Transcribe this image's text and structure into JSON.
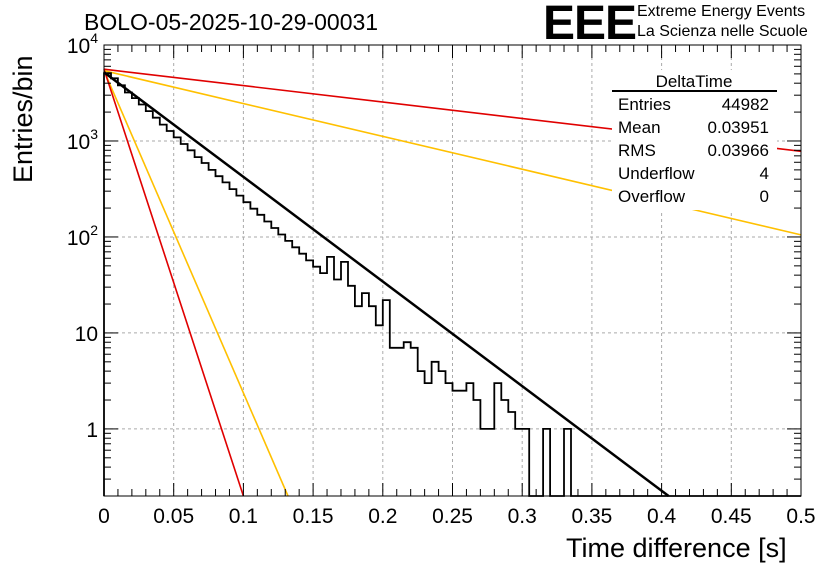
{
  "colors": {
    "histogram": "#000000",
    "fit": "#000000",
    "red_curves": "#e00000",
    "yellow_curves": "#ffc000",
    "logo": "#1a1aff",
    "grid": "#aaaaaa"
  },
  "header": {
    "run_title": "BOLO-05-2025-10-29-00031",
    "logo_text": "EEE",
    "logo_line1": "Extreme Energy Events",
    "logo_line2": "La Scienza nelle Scuole"
  },
  "stats": {
    "title": "DeltaTime",
    "rows": [
      {
        "label": "Entries",
        "value": "44982"
      },
      {
        "label": "Mean",
        "value": "0.03951"
      },
      {
        "label": "RMS",
        "value": "0.03966"
      },
      {
        "label": "Underflow",
        "value": "4"
      },
      {
        "label": "Overflow",
        "value": "0"
      }
    ]
  },
  "chart_data": {
    "type": "line",
    "title": "BOLO-05-2025-10-29-00031",
    "xlabel": "Time difference [s]",
    "ylabel": "Entries/bin",
    "xlim": [
      0,
      0.5
    ],
    "ylim": [
      0.2,
      10000
    ],
    "yscale": "log",
    "grid": true,
    "legend": "top-right",
    "x_ticks": [
      0,
      0.05,
      0.1,
      0.15,
      0.2,
      0.25,
      0.3,
      0.35,
      0.4,
      0.45,
      0.5
    ],
    "x_tick_labels": [
      "0",
      "0.05",
      "0.1",
      "0.15",
      "0.2",
      "0.25",
      "0.3",
      "0.35",
      "0.4",
      "0.45",
      "0.5"
    ],
    "y_ticks": [
      1,
      10,
      100,
      1000,
      10000
    ],
    "y_tick_labels": [
      "1",
      "10",
      "10^2",
      "10^3",
      "10^4"
    ],
    "histogram": {
      "name": "DeltaTime",
      "bin_width": 0.005,
      "values": [
        5100,
        4500,
        3800,
        3200,
        2800,
        2400,
        2050,
        1750,
        1480,
        1270,
        1090,
        930,
        800,
        680,
        590,
        500,
        430,
        370,
        315,
        270,
        230,
        197,
        170,
        145,
        124,
        106,
        91,
        78,
        67,
        57,
        49,
        42,
        62,
        36,
        55,
        31,
        19,
        26,
        19,
        12,
        22,
        7,
        7,
        8,
        7,
        4,
        3,
        5,
        4,
        3,
        2.5,
        2.5,
        3,
        2,
        1,
        1,
        3,
        2,
        1.5,
        1,
        1,
        0,
        0,
        1,
        0,
        0,
        1,
        0,
        0,
        0,
        0,
        0,
        0,
        0,
        0,
        0,
        0,
        0,
        0,
        0,
        0,
        0,
        0,
        0,
        0,
        0,
        0,
        0,
        0,
        0,
        0,
        0,
        0,
        0,
        0,
        0,
        0,
        0,
        0,
        0
      ]
    },
    "series": [
      {
        "name": "fit",
        "color": "black",
        "x": [
          0,
          0.405
        ],
        "y": [
          5200,
          0.2
        ]
      },
      {
        "name": "red upper",
        "color": "red",
        "x": [
          0,
          0.5
        ],
        "y": [
          5600,
          780
        ]
      },
      {
        "name": "yellow upper",
        "color": "yellow",
        "x": [
          0,
          0.5
        ],
        "y": [
          5400,
          105
        ]
      },
      {
        "name": "yellow steep",
        "color": "yellow",
        "x": [
          0,
          0.132
        ],
        "y": [
          5400,
          0.2
        ]
      },
      {
        "name": "red steep",
        "color": "red",
        "x": [
          0,
          0.1
        ],
        "y": [
          5600,
          0.2
        ]
      }
    ]
  }
}
